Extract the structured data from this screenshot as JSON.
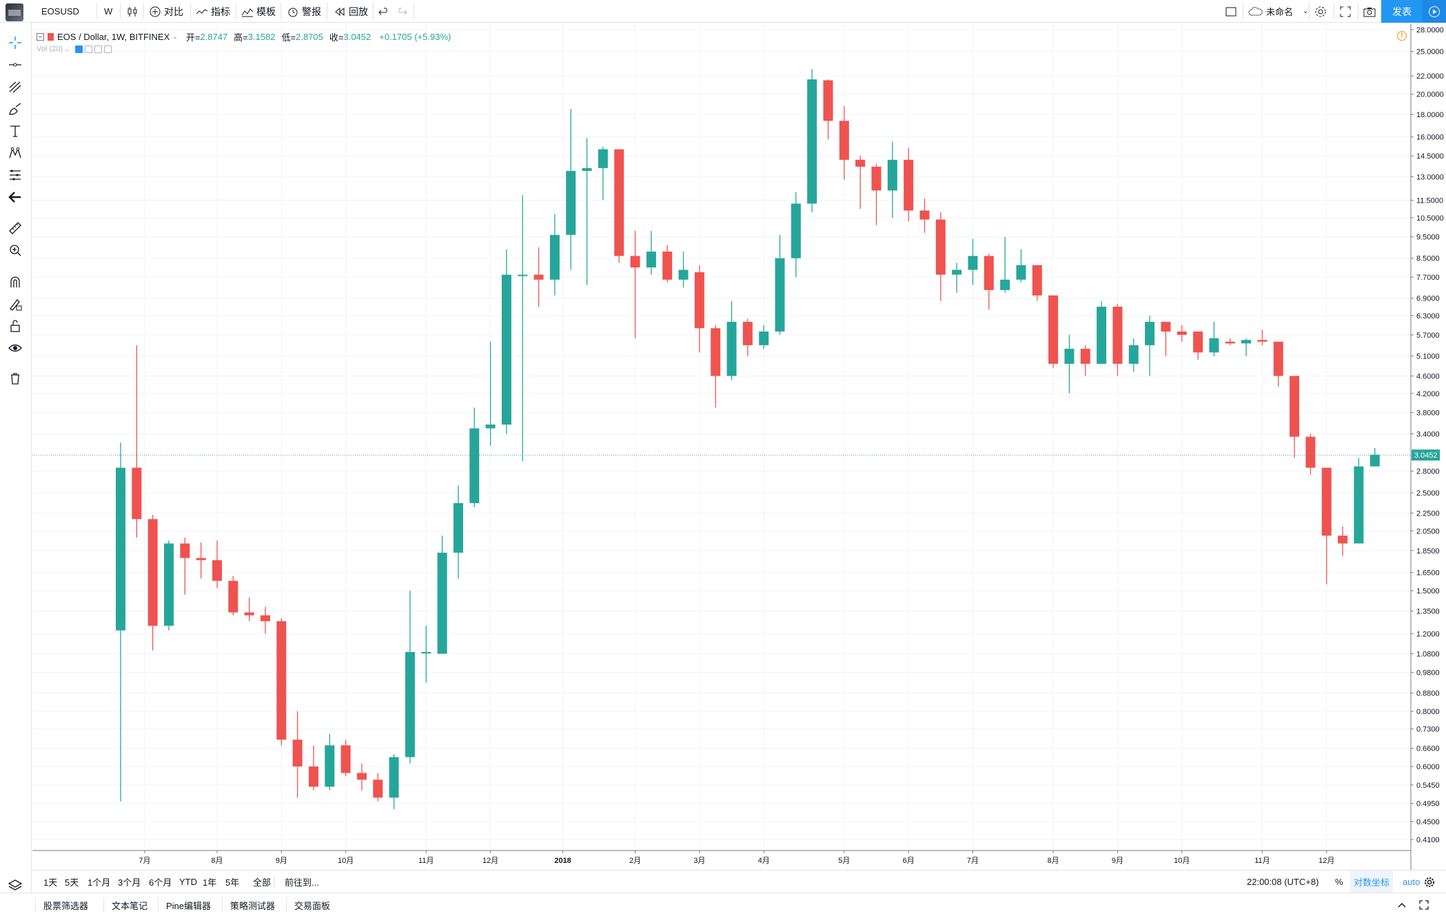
{
  "topbar": {
    "symbol": "EOSUSD",
    "interval": "W",
    "compare": "对比",
    "indicators": "指标",
    "templates": "模板",
    "alerts": "警报",
    "replay": "回放",
    "layout_name": "未命名",
    "publish": "发表"
  },
  "legend": {
    "title": "EOS / Dollar, 1W, BITFINEX",
    "open_label": "开=",
    "open": "2.8747",
    "high_label": "高=",
    "high": "3.1582",
    "low_label": "低=",
    "low": "2.8705",
    "close_label": "收=",
    "close": "3.0452",
    "change": "+0.1705 (+5.93%)",
    "vol": "Vol (20)"
  },
  "range_bar": {
    "ranges": [
      "1天",
      "5天",
      "1个月",
      "3个月",
      "6个月",
      "YTD",
      "1年",
      "5年",
      "全部"
    ],
    "goto": "前往到...",
    "time": "22:00:08 (UTC+8)",
    "percent": "%",
    "log": "对数坐标",
    "auto": "auto"
  },
  "panel_tabs": [
    "股票筛选器",
    "文本笔记",
    "Pine编辑器",
    "策略测试器",
    "交易面板"
  ],
  "colors": {
    "up": "#26a69a",
    "down": "#ef5350",
    "accent": "#2196f3",
    "grid": "#f0f3fa"
  },
  "icons": [
    "crosshair-icon",
    "horizontal-line-icon",
    "pitchfork-icon",
    "brush-icon",
    "text-icon",
    "pattern-icon",
    "prediction-icon",
    "back-arrow-icon",
    "ruler-icon",
    "zoom-in-icon",
    "magnet-icon",
    "lock-drawing-icon",
    "lock-icon",
    "eye-icon",
    "trash-icon",
    "layers-icon"
  ],
  "chart_data": {
    "type": "candlestick",
    "scale": "log",
    "price_axis_ticks": [
      28,
      25,
      22,
      20,
      18,
      16,
      14.5,
      13,
      11.5,
      10.5,
      9.5,
      8.5,
      7.7,
      6.9,
      6.3,
      5.7,
      5.1,
      4.6,
      4.2,
      3.8,
      3.4,
      2.8,
      2.5,
      2.25,
      2.05,
      1.85,
      1.65,
      1.5,
      1.35,
      1.2,
      1.08,
      0.98,
      0.88,
      0.8,
      0.73,
      0.66,
      0.6,
      0.545,
      0.495,
      0.45,
      0.41
    ],
    "price_axis_labels": [
      "28.0000",
      "25.0000",
      "22.0000",
      "20.0000",
      "18.0000",
      "16.0000",
      "14.5000",
      "13.0000",
      "11.5000",
      "10.5000",
      "9.5000",
      "8.5000",
      "7.7000",
      "6.9000",
      "6.3000",
      "5.7000",
      "5.1000",
      "4.6000",
      "4.2000",
      "3.8000",
      "3.4000",
      "2.8000",
      "2.5000",
      "2.2500",
      "2.0500",
      "1.8500",
      "1.6500",
      "1.5000",
      "1.3500",
      "1.2000",
      "1.0800",
      "0.9800",
      "0.8800",
      "0.8000",
      "0.7300",
      "0.6600",
      "0.6000",
      "0.5450",
      "0.4950",
      "0.4500",
      "0.4100"
    ],
    "time_labels": [
      {
        "label": "7月",
        "index": 1.5
      },
      {
        "label": "8月",
        "index": 6
      },
      {
        "label": "9月",
        "index": 10
      },
      {
        "label": "10月",
        "index": 14
      },
      {
        "label": "11月",
        "index": 19
      },
      {
        "label": "12月",
        "index": 23
      },
      {
        "label": "2018",
        "index": 27.5
      },
      {
        "label": "2月",
        "index": 32
      },
      {
        "label": "3月",
        "index": 36
      },
      {
        "label": "4月",
        "index": 40
      },
      {
        "label": "5月",
        "index": 45
      },
      {
        "label": "6月",
        "index": 49
      },
      {
        "label": "7月",
        "index": 53
      },
      {
        "label": "8月",
        "index": 58
      },
      {
        "label": "9月",
        "index": 62
      },
      {
        "label": "10月",
        "index": 66
      },
      {
        "label": "11月",
        "index": 71
      },
      {
        "label": "12月",
        "index": 75
      }
    ],
    "last_price": 3.0452,
    "last_price_label": "3.0452",
    "candles": [
      [
        1.22,
        3.25,
        0.5,
        2.85
      ],
      [
        2.85,
        5.4,
        1.98,
        2.18
      ],
      [
        2.18,
        2.23,
        1.1,
        1.25
      ],
      [
        1.25,
        1.95,
        1.22,
        1.92
      ],
      [
        1.92,
        1.98,
        1.47,
        1.78
      ],
      [
        1.78,
        1.93,
        1.6,
        1.76
      ],
      [
        1.76,
        1.95,
        1.52,
        1.58
      ],
      [
        1.58,
        1.62,
        1.32,
        1.34
      ],
      [
        1.34,
        1.45,
        1.28,
        1.32
      ],
      [
        1.32,
        1.38,
        1.2,
        1.28
      ],
      [
        1.28,
        1.3,
        0.67,
        0.69
      ],
      [
        0.69,
        0.8,
        0.51,
        0.6
      ],
      [
        0.6,
        0.67,
        0.53,
        0.54
      ],
      [
        0.54,
        0.71,
        0.53,
        0.67
      ],
      [
        0.67,
        0.69,
        0.57,
        0.58
      ],
      [
        0.58,
        0.61,
        0.53,
        0.56
      ],
      [
        0.56,
        0.58,
        0.5,
        0.51
      ],
      [
        0.51,
        0.64,
        0.48,
        0.63
      ],
      [
        0.63,
        1.5,
        0.61,
        1.09
      ],
      [
        1.09,
        1.25,
        0.93,
        1.09
      ],
      [
        1.08,
        2.0,
        1.08,
        1.83
      ],
      [
        1.83,
        2.6,
        1.6,
        2.37
      ],
      [
        2.37,
        3.9,
        2.32,
        3.5
      ],
      [
        3.5,
        5.5,
        3.2,
        3.57
      ],
      [
        3.57,
        8.9,
        3.4,
        7.8
      ],
      [
        7.8,
        11.8,
        2.95,
        7.8
      ],
      [
        7.8,
        9.0,
        6.6,
        7.6
      ],
      [
        7.6,
        10.7,
        7.0,
        9.6
      ],
      [
        9.6,
        18.5,
        8.0,
        13.4
      ],
      [
        13.4,
        15.9,
        7.4,
        13.6
      ],
      [
        13.6,
        15.2,
        11.5,
        15.0
      ],
      [
        15.0,
        15.0,
        8.3,
        8.6
      ],
      [
        8.6,
        9.8,
        5.6,
        8.1
      ],
      [
        8.1,
        9.8,
        7.8,
        8.8
      ],
      [
        8.8,
        9.1,
        7.5,
        7.6
      ],
      [
        7.6,
        8.8,
        7.3,
        8.0
      ],
      [
        7.9,
        8.2,
        5.2,
        5.9
      ],
      [
        5.9,
        6.0,
        3.9,
        4.6
      ],
      [
        4.6,
        6.8,
        4.5,
        6.1
      ],
      [
        6.1,
        6.2,
        5.1,
        5.4
      ],
      [
        5.4,
        6.0,
        5.3,
        5.8
      ],
      [
        5.8,
        9.6,
        5.7,
        8.5
      ],
      [
        8.5,
        12.0,
        7.7,
        11.3
      ],
      [
        11.3,
        22.8,
        10.8,
        21.6
      ],
      [
        21.5,
        21.6,
        15.8,
        17.4
      ],
      [
        17.4,
        18.8,
        12.8,
        14.2
      ],
      [
        14.2,
        14.5,
        11.0,
        13.7
      ],
      [
        13.7,
        13.9,
        10.1,
        12.1
      ],
      [
        12.1,
        15.6,
        10.5,
        14.2
      ],
      [
        14.2,
        15.1,
        10.3,
        10.9
      ],
      [
        10.9,
        11.6,
        9.7,
        10.4
      ],
      [
        10.4,
        10.8,
        6.8,
        7.8
      ],
      [
        7.8,
        8.3,
        7.1,
        8.0
      ],
      [
        8.0,
        9.4,
        7.4,
        8.6
      ],
      [
        8.6,
        8.7,
        6.5,
        7.2
      ],
      [
        7.2,
        9.5,
        7.1,
        7.6
      ],
      [
        7.6,
        8.9,
        7.5,
        8.2
      ],
      [
        8.2,
        8.2,
        6.8,
        7.0
      ],
      [
        7.0,
        7.0,
        4.8,
        4.9
      ],
      [
        4.9,
        5.7,
        4.2,
        5.3
      ],
      [
        5.3,
        5.4,
        4.6,
        4.9
      ],
      [
        4.9,
        6.8,
        4.9,
        6.6
      ],
      [
        6.6,
        6.7,
        4.6,
        4.9
      ],
      [
        4.9,
        5.6,
        4.7,
        5.4
      ],
      [
        5.4,
        6.3,
        4.6,
        6.1
      ],
      [
        6.1,
        6.1,
        5.1,
        5.8
      ],
      [
        5.8,
        6.0,
        5.5,
        5.7
      ],
      [
        5.8,
        5.8,
        5.0,
        5.2
      ],
      [
        5.2,
        6.1,
        5.1,
        5.6
      ],
      [
        5.5,
        5.6,
        5.4,
        5.45
      ],
      [
        5.45,
        5.6,
        5.1,
        5.55
      ],
      [
        5.55,
        5.85,
        5.4,
        5.5
      ],
      [
        5.5,
        5.5,
        4.35,
        4.6
      ],
      [
        4.6,
        4.6,
        3.0,
        3.35
      ],
      [
        3.35,
        3.4,
        2.75,
        2.85
      ],
      [
        2.85,
        2.85,
        1.55,
        2.0
      ],
      [
        2.0,
        2.1,
        1.8,
        1.92
      ],
      [
        1.92,
        3.0,
        1.92,
        2.87
      ],
      [
        2.87,
        3.16,
        2.87,
        3.05
      ]
    ]
  }
}
